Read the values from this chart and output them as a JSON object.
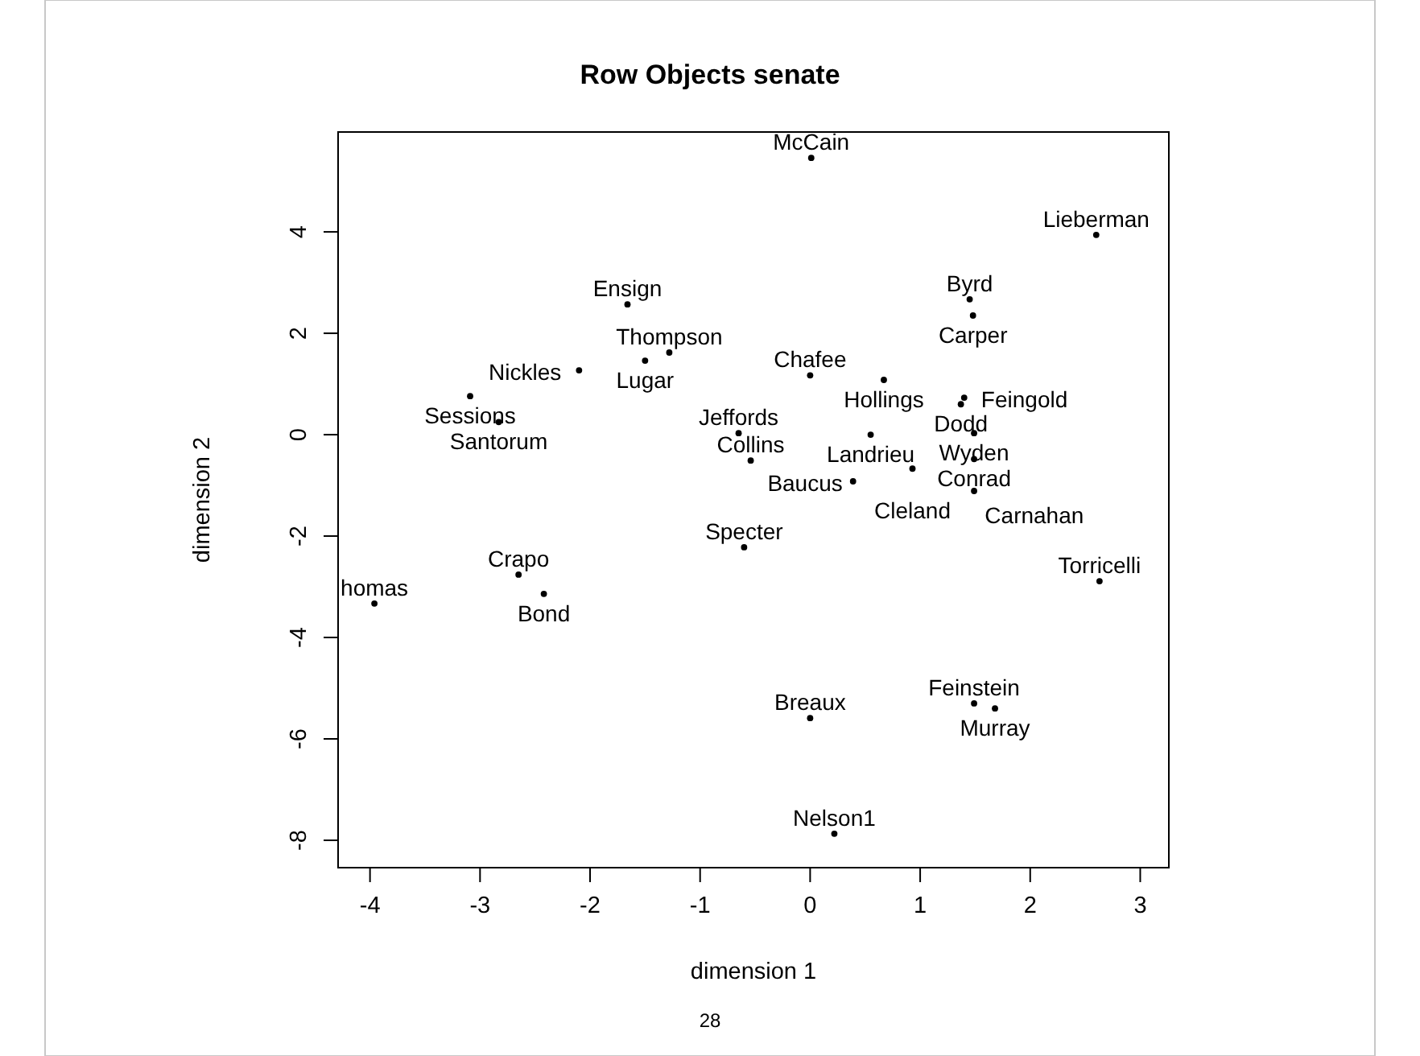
{
  "chart_data": {
    "type": "scatter",
    "title": "Row Objects senate",
    "xlabel": "dimension 1",
    "ylabel": "dimension 2",
    "marker": "circle",
    "grid": false,
    "xlim": [
      -4.29,
      3.26
    ],
    "ylim": [
      -8.54,
      5.97
    ],
    "xticks": [
      -4,
      -3,
      -2,
      -1,
      0,
      1,
      2,
      3
    ],
    "yticks": [
      -8,
      -6,
      -4,
      -2,
      0,
      2,
      4
    ],
    "series": [
      {
        "color": "#000000",
        "x": [
          0.01,
          2.6,
          -1.66,
          -1.28,
          -1.5,
          -2.1,
          -3.09,
          -2.83,
          -0.65,
          -0.54,
          -0.6,
          -2.65,
          -2.42,
          -3.96,
          0.0,
          0.67,
          1.45,
          1.48,
          1.4,
          1.37,
          0.55,
          1.49,
          1.49,
          0.93,
          0.39,
          1.49,
          2.63,
          1.49,
          1.68,
          0.0,
          0.22
        ],
        "values": [
          5.46,
          3.94,
          2.57,
          1.62,
          1.46,
          1.27,
          0.76,
          0.25,
          0.03,
          -0.51,
          -2.22,
          -2.76,
          -3.14,
          -3.33,
          1.17,
          1.08,
          2.67,
          2.35,
          0.73,
          0.6,
          0.0,
          0.03,
          -0.48,
          -0.67,
          -0.92,
          -1.11,
          -2.89,
          -5.3,
          -5.4,
          -5.59,
          -7.87
        ],
        "value_labels": [
          "McCain",
          "Lieberman",
          "Ensign",
          "Thompson",
          "Lugar",
          "Nickles",
          "Sessions",
          "Santorum",
          "Jeffords",
          "Collins",
          "Specter",
          "Crapo",
          "Bond",
          "homas",
          "Chafee",
          "Hollings",
          "Byrd",
          "Carper",
          "Feingold",
          "Dodd",
          "Landrieu",
          "Wyden",
          "Conrad",
          "Cleland",
          "Baucus",
          "Carnahan",
          "Torricelli",
          "Feinstein",
          "Murray",
          "Breaux",
          "Nelson1"
        ]
      }
    ],
    "annotations": [
      "28"
    ]
  }
}
